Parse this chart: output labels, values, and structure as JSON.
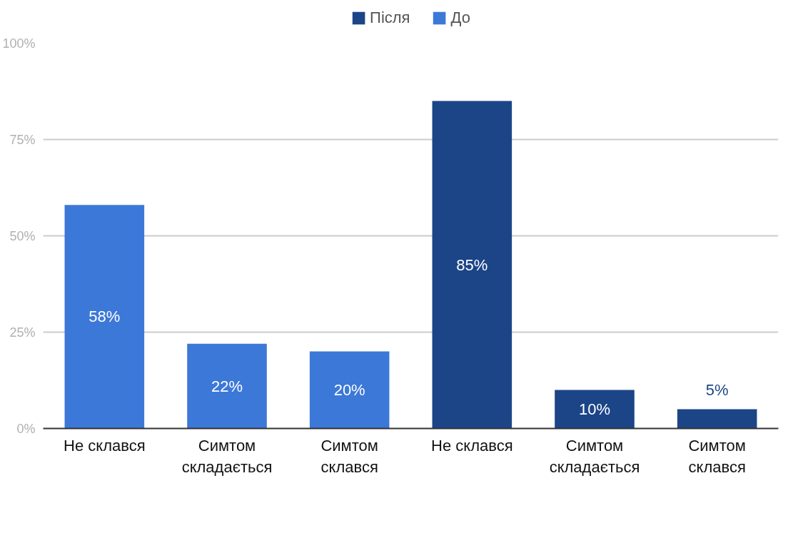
{
  "chart_data": {
    "type": "bar",
    "categories": [
      "Не склався",
      "Симтом складається",
      "Симтом склався",
      "Не склався",
      "Симтом складається",
      "Симтом склався"
    ],
    "series": [
      {
        "name": "Після",
        "color": "#1c4587",
        "values": [
          null,
          null,
          null,
          85,
          10,
          5
        ],
        "value_labels": [
          null,
          null,
          null,
          "85%",
          "10%",
          "5%"
        ]
      },
      {
        "name": "До",
        "color": "#3c78d8",
        "values": [
          58,
          22,
          20,
          null,
          null,
          null
        ],
        "value_labels": [
          "58%",
          "22%",
          "20%",
          null,
          null,
          null
        ]
      }
    ],
    "ylim": [
      0,
      100
    ],
    "yticks": [
      {
        "value": 0,
        "label": "0%"
      },
      {
        "value": 25,
        "label": "25%"
      },
      {
        "value": 50,
        "label": "50%"
      },
      {
        "value": 75,
        "label": "75%"
      },
      {
        "value": 100,
        "label": "100%"
      }
    ],
    "grid": "y",
    "legend": "top"
  }
}
